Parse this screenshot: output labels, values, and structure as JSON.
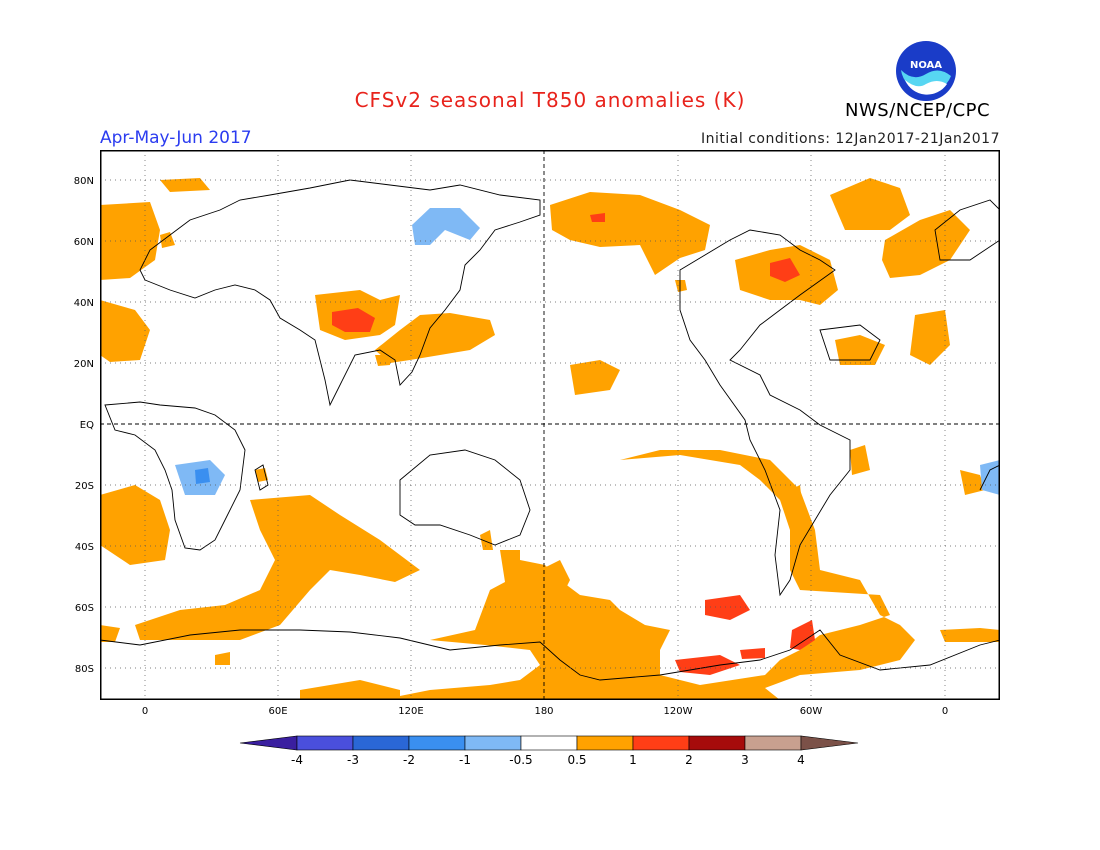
{
  "header": {
    "title": "CFSv2 seasonal T850 anomalies (K)",
    "period": "Apr-May-Jun 2017",
    "initial_conditions": "Initial conditions: 12Jan2017-21Jan2017",
    "org": "NWS/NCEP/CPC",
    "logo_text": "NOAA"
  },
  "map": {
    "lat_labels": [
      "80N",
      "60N",
      "40N",
      "20N",
      "EQ",
      "20S",
      "40S",
      "60S",
      "80S"
    ],
    "lon_labels": [
      "0",
      "60E",
      "120E",
      "180",
      "120W",
      "60W",
      "0"
    ]
  },
  "colorbar": {
    "labels": [
      "-4",
      "-3",
      "-2",
      "-1",
      "-0.5",
      "0.5",
      "1",
      "2",
      "3",
      "4"
    ],
    "colors": [
      "#3a1fa0",
      "#4a4fdc",
      "#2a67d6",
      "#3a8ff0",
      "#7fb9f5",
      "#ffffff",
      "#ffa200",
      "#ff3e16",
      "#a60b0b",
      "#c8a08f",
      "#7b5148"
    ]
  }
}
